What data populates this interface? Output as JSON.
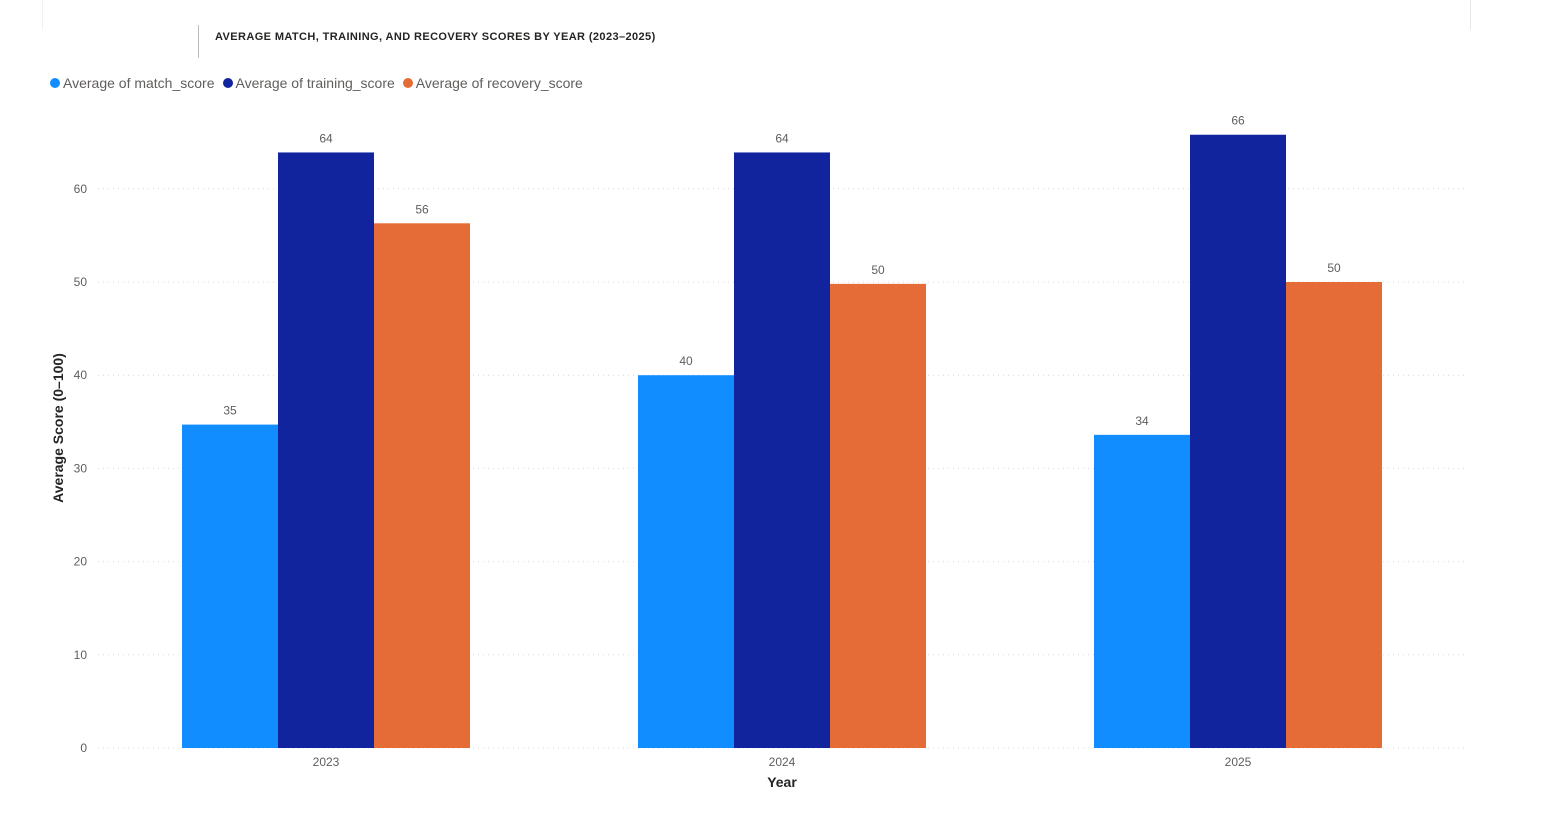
{
  "chart_data": {
    "type": "bar",
    "title": "AVERAGE MATCH, TRAINING, AND RECOVERY SCORES BY YEAR (2023–2025)",
    "xlabel": "Year",
    "ylabel": "Average Score (0–100)",
    "categories": [
      "2023",
      "2024",
      "2025"
    ],
    "series": [
      {
        "name": "Average of match_score",
        "color": "#118dff",
        "values": [
          34.7,
          40.0,
          33.6
        ],
        "labels": [
          "35",
          "40",
          "34"
        ]
      },
      {
        "name": "Average of training_score",
        "color": "#12239e",
        "values": [
          63.9,
          63.9,
          65.8
        ],
        "labels": [
          "64",
          "64",
          "66"
        ]
      },
      {
        "name": "Average of recovery_score",
        "color": "#e66c37",
        "values": [
          56.3,
          49.8,
          50.0
        ],
        "labels": [
          "56",
          "50",
          "50"
        ]
      }
    ],
    "ylim": [
      0,
      70
    ],
    "yticks": [
      0,
      10,
      20,
      30,
      40,
      50,
      60
    ],
    "grid": true,
    "legend_position": "top-left"
  }
}
